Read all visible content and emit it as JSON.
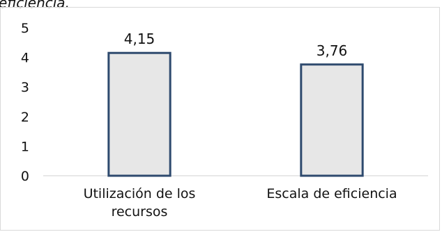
{
  "caption_fragment": "eficiencia.",
  "chart_data": {
    "type": "bar",
    "categories": [
      [
        "Utilización de los",
        "recursos"
      ],
      [
        "Escala de eficiencia"
      ]
    ],
    "values": [
      4.15,
      3.76
    ],
    "data_labels": [
      "4,15",
      "3,76"
    ],
    "title": "",
    "xlabel": "",
    "ylabel": "",
    "ylim": [
      0,
      5
    ],
    "yticks": [
      0,
      1,
      2,
      3,
      4,
      5
    ],
    "ytick_labels": [
      "0",
      "1",
      "2",
      "3",
      "4",
      "5"
    ],
    "grid": false,
    "legend": "none",
    "bar_fill": "#e7e7e7",
    "bar_border": "#2e4a6e"
  }
}
